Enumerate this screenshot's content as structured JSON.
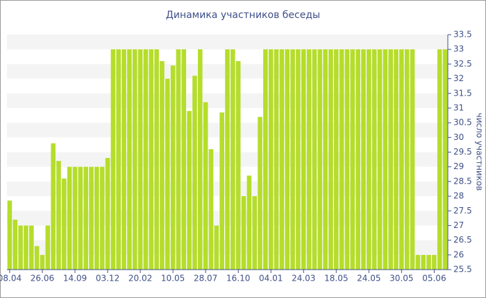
{
  "chart_data": {
    "type": "bar",
    "title": "Динамика участников беседы",
    "y_label": "число участников",
    "categories": [
      "08.04",
      null,
      null,
      null,
      null,
      null,
      "26.06",
      null,
      null,
      null,
      null,
      null,
      "14.09",
      null,
      null,
      null,
      null,
      null,
      "03.12",
      null,
      null,
      null,
      null,
      null,
      "20.02",
      null,
      null,
      null,
      null,
      null,
      "10.05",
      null,
      null,
      null,
      null,
      null,
      "28.07",
      null,
      null,
      null,
      null,
      null,
      "16.10",
      null,
      null,
      null,
      null,
      null,
      "04.01",
      null,
      null,
      null,
      null,
      null,
      "24.03",
      null,
      null,
      null,
      null,
      null,
      "18.05",
      null,
      null,
      null,
      null,
      null,
      "24.05",
      null,
      null,
      null,
      null,
      null,
      "30.05",
      null,
      null,
      null,
      null,
      null,
      "05.06",
      null,
      null
    ],
    "values": [
      27.85,
      27.2,
      27,
      27,
      27,
      26.3,
      26,
      27,
      29.8,
      29.2,
      28.6,
      29,
      29,
      29,
      29,
      29,
      29,
      29,
      29.3,
      33,
      33,
      33,
      33,
      33,
      33,
      33,
      33,
      33,
      32.6,
      32,
      32.45,
      33,
      33,
      30.9,
      32.1,
      33,
      31.2,
      29.6,
      27,
      30.85,
      33,
      33,
      32.6,
      28,
      28.7,
      28,
      30.7,
      33,
      33,
      33,
      33,
      33,
      33,
      33,
      33,
      33,
      33,
      33,
      33,
      33,
      33,
      33,
      33,
      33,
      33,
      33,
      33,
      33,
      33,
      33,
      33,
      33,
      33,
      33,
      33,
      26,
      26,
      26,
      26,
      33,
      33
    ],
    "color": "#b5dd2b",
    "ylim": [
      25.5,
      33.5
    ],
    "yticks": [
      25.5,
      26,
      26.5,
      27,
      27.5,
      28,
      28.5,
      29,
      29.5,
      30,
      30.5,
      31,
      31.5,
      32,
      32.5,
      33,
      33.5
    ],
    "grid": true
  }
}
